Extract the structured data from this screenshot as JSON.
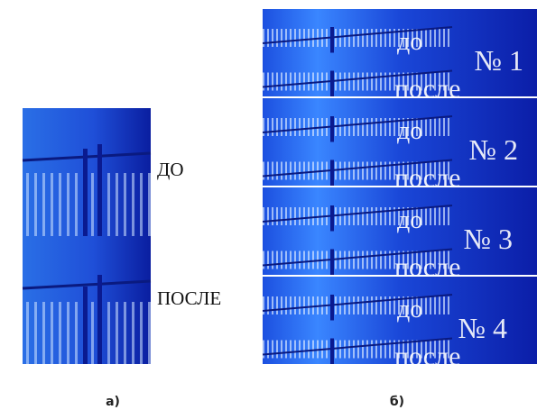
{
  "panel_a": {
    "label_before": "ДО",
    "label_after": "ПОСЛЕ",
    "caption": "а)"
  },
  "panel_b": {
    "rows": [
      {
        "before": "до",
        "after": "после",
        "number": "№ 1"
      },
      {
        "before": "до",
        "after": "после",
        "number": "№ 2"
      },
      {
        "before": "до",
        "after": "после",
        "number": "№ 3"
      },
      {
        "before": "до",
        "after": "после",
        "number": "№ 4"
      }
    ],
    "caption": "б)"
  }
}
